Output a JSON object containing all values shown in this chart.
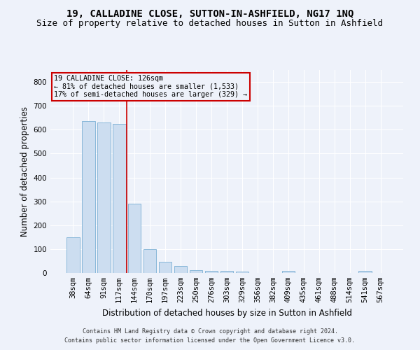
{
  "title": "19, CALLADINE CLOSE, SUTTON-IN-ASHFIELD, NG17 1NQ",
  "subtitle": "Size of property relative to detached houses in Sutton in Ashfield",
  "xlabel": "Distribution of detached houses by size in Sutton in Ashfield",
  "ylabel": "Number of detached properties",
  "footer_line1": "Contains HM Land Registry data © Crown copyright and database right 2024.",
  "footer_line2": "Contains public sector information licensed under the Open Government Licence v3.0.",
  "annotation_title": "19 CALLADINE CLOSE: 126sqm",
  "annotation_line2": "← 81% of detached houses are smaller (1,533)",
  "annotation_line3": "17% of semi-detached houses are larger (329) →",
  "bar_color": "#ccddf0",
  "bar_edge_color": "#7bafd4",
  "vline_color": "#cc0000",
  "vline_x": 3.5,
  "categories": [
    "38sqm",
    "64sqm",
    "91sqm",
    "117sqm",
    "144sqm",
    "170sqm",
    "197sqm",
    "223sqm",
    "250sqm",
    "276sqm",
    "303sqm",
    "329sqm",
    "356sqm",
    "382sqm",
    "409sqm",
    "435sqm",
    "461sqm",
    "488sqm",
    "514sqm",
    "541sqm",
    "567sqm"
  ],
  "values": [
    150,
    635,
    630,
    625,
    290,
    100,
    47,
    30,
    13,
    10,
    8,
    6,
    0,
    0,
    9,
    0,
    0,
    0,
    0,
    8,
    0
  ],
  "ylim": [
    0,
    850
  ],
  "yticks": [
    0,
    100,
    200,
    300,
    400,
    500,
    600,
    700,
    800
  ],
  "background_color": "#eef2fa",
  "grid_color": "#ffffff",
  "title_fontsize": 10,
  "subtitle_fontsize": 9,
  "tick_fontsize": 7.5,
  "label_fontsize": 8.5,
  "footer_fontsize": 6.0
}
